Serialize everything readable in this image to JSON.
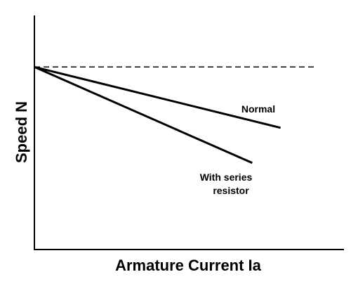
{
  "chart_data": {
    "type": "line",
    "xlabel": "Armature Current Ia",
    "ylabel": "Speed N",
    "xlim": [
      0,
      1
    ],
    "ylim": [
      0,
      1
    ],
    "ticks": "none",
    "grid": false,
    "series": [
      {
        "name": "",
        "style": "dashed",
        "x": [
          0,
          1
        ],
        "y": [
          0.78,
          0.78
        ]
      },
      {
        "name": "Normal",
        "style": "solid",
        "x": [
          0,
          0.87
        ],
        "y": [
          0.78,
          0.52
        ]
      },
      {
        "name": "With series resistor",
        "style": "solid",
        "x": [
          0,
          0.77
        ],
        "y": [
          0.78,
          0.37
        ]
      }
    ],
    "annotations": [
      {
        "text": "Normal",
        "series": 1
      },
      {
        "text": "With series",
        "series": 2
      },
      {
        "text": "resistor",
        "series": 2
      }
    ],
    "colors": {
      "line": "#000000",
      "background": "#ffffff"
    }
  }
}
